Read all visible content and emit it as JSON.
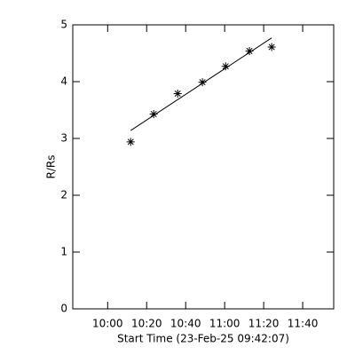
{
  "chart_data": {
    "type": "scatter",
    "xlabel": "Start Time (23-Feb-25 09:42:07)",
    "ylabel": "R/Rs",
    "series": [
      {
        "color": "#000000",
        "marker": "asterisk",
        "x": [
          11.8,
          23.6,
          35.9,
          48.6,
          60.5,
          72.7,
          84.1
        ],
        "values": [
          2.94,
          3.43,
          3.79,
          3.99,
          4.27,
          4.54,
          4.61
        ]
      }
    ],
    "fit": {
      "color": "#000000",
      "x": [
        11.8,
        84.1
      ],
      "values": [
        3.14,
        4.77
      ]
    },
    "xlim": [
      -17.88,
      115.9
    ],
    "xticks": [
      {
        "value": 0,
        "label": "10:00"
      },
      {
        "value": 20,
        "label": "10:20"
      },
      {
        "value": 40,
        "label": "10:40"
      },
      {
        "value": 60,
        "label": "11:00"
      },
      {
        "value": 80,
        "label": "11:20"
      },
      {
        "value": 100,
        "label": "11:40"
      }
    ],
    "ylim": [
      0,
      5
    ],
    "yticks": [
      0,
      1,
      2,
      3,
      4,
      5
    ],
    "grid": false
  }
}
